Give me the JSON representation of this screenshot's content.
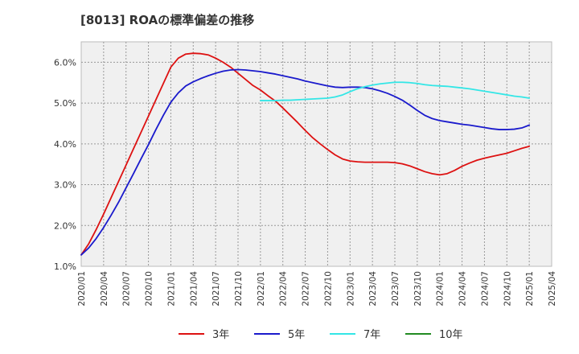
{
  "chart_data": {
    "type": "line",
    "title": "[8013]  ROAの標準偏差の推移",
    "xlabel": "",
    "ylabel": "",
    "ylim": [
      1.0,
      6.5
    ],
    "yticks": [
      "1.0%",
      "2.0%",
      "3.0%",
      "4.0%",
      "5.0%",
      "6.0%"
    ],
    "xticks": [
      "2020/01",
      "2020/04",
      "2020/07",
      "2020/10",
      "2021/01",
      "2021/04",
      "2021/07",
      "2021/10",
      "2022/01",
      "2022/04",
      "2022/07",
      "2022/10",
      "2023/01",
      "2023/04",
      "2023/07",
      "2023/10",
      "2024/01",
      "2024/04",
      "2024/07",
      "2024/10",
      "2025/01",
      "2025/04"
    ],
    "grid": true,
    "legend_position": "bottom",
    "series": [
      {
        "name": "3年",
        "color": "#dd1111",
        "points": [
          [
            "2020/01",
            1.28
          ],
          [
            "2020/02",
            1.55
          ],
          [
            "2020/03",
            1.9
          ],
          [
            "2020/04",
            2.28
          ],
          [
            "2020/05",
            2.68
          ],
          [
            "2020/06",
            3.08
          ],
          [
            "2020/07",
            3.48
          ],
          [
            "2020/08",
            3.88
          ],
          [
            "2020/09",
            4.28
          ],
          [
            "2020/10",
            4.68
          ],
          [
            "2020/11",
            5.08
          ],
          [
            "2020/12",
            5.48
          ],
          [
            "2021/01",
            5.88
          ],
          [
            "2021/02",
            6.1
          ],
          [
            "2021/03",
            6.2
          ],
          [
            "2021/04",
            6.22
          ],
          [
            "2021/05",
            6.21
          ],
          [
            "2021/06",
            6.18
          ],
          [
            "2021/07",
            6.1
          ],
          [
            "2021/08",
            6.0
          ],
          [
            "2021/09",
            5.88
          ],
          [
            "2021/10",
            5.73
          ],
          [
            "2021/11",
            5.58
          ],
          [
            "2021/12",
            5.43
          ],
          [
            "2022/01",
            5.32
          ],
          [
            "2022/02",
            5.18
          ],
          [
            "2022/03",
            5.05
          ],
          [
            "2022/04",
            4.88
          ],
          [
            "2022/05",
            4.7
          ],
          [
            "2022/06",
            4.52
          ],
          [
            "2022/07",
            4.33
          ],
          [
            "2022/08",
            4.15
          ],
          [
            "2022/09",
            4.0
          ],
          [
            "2022/10",
            3.86
          ],
          [
            "2022/11",
            3.73
          ],
          [
            "2022/12",
            3.63
          ],
          [
            "2023/01",
            3.58
          ],
          [
            "2023/02",
            3.56
          ],
          [
            "2023/03",
            3.55
          ],
          [
            "2023/04",
            3.55
          ],
          [
            "2023/05",
            3.55
          ],
          [
            "2023/06",
            3.55
          ],
          [
            "2023/07",
            3.54
          ],
          [
            "2023/08",
            3.51
          ],
          [
            "2023/09",
            3.46
          ],
          [
            "2023/10",
            3.39
          ],
          [
            "2023/11",
            3.32
          ],
          [
            "2023/12",
            3.27
          ],
          [
            "2024/01",
            3.24
          ],
          [
            "2024/02",
            3.27
          ],
          [
            "2024/03",
            3.35
          ],
          [
            "2024/04",
            3.45
          ],
          [
            "2024/05",
            3.53
          ],
          [
            "2024/06",
            3.6
          ],
          [
            "2024/07",
            3.65
          ],
          [
            "2024/08",
            3.69
          ],
          [
            "2024/09",
            3.73
          ],
          [
            "2024/10",
            3.77
          ],
          [
            "2024/11",
            3.83
          ],
          [
            "2024/12",
            3.89
          ],
          [
            "2025/01",
            3.94
          ]
        ]
      },
      {
        "name": "5年",
        "color": "#1a1acc",
        "points": [
          [
            "2020/01",
            1.28
          ],
          [
            "2020/02",
            1.45
          ],
          [
            "2020/03",
            1.68
          ],
          [
            "2020/04",
            1.95
          ],
          [
            "2020/05",
            2.25
          ],
          [
            "2020/06",
            2.57
          ],
          [
            "2020/07",
            2.92
          ],
          [
            "2020/08",
            3.27
          ],
          [
            "2020/09",
            3.63
          ],
          [
            "2020/10",
            3.98
          ],
          [
            "2020/11",
            4.35
          ],
          [
            "2020/12",
            4.7
          ],
          [
            "2021/01",
            5.02
          ],
          [
            "2021/02",
            5.25
          ],
          [
            "2021/03",
            5.42
          ],
          [
            "2021/04",
            5.52
          ],
          [
            "2021/05",
            5.6
          ],
          [
            "2021/06",
            5.67
          ],
          [
            "2021/07",
            5.73
          ],
          [
            "2021/08",
            5.78
          ],
          [
            "2021/09",
            5.81
          ],
          [
            "2021/10",
            5.82
          ],
          [
            "2021/11",
            5.81
          ],
          [
            "2021/12",
            5.79
          ],
          [
            "2022/01",
            5.77
          ],
          [
            "2022/02",
            5.74
          ],
          [
            "2022/03",
            5.71
          ],
          [
            "2022/04",
            5.67
          ],
          [
            "2022/05",
            5.63
          ],
          [
            "2022/06",
            5.59
          ],
          [
            "2022/07",
            5.54
          ],
          [
            "2022/08",
            5.5
          ],
          [
            "2022/09",
            5.46
          ],
          [
            "2022/10",
            5.42
          ],
          [
            "2022/11",
            5.39
          ],
          [
            "2022/12",
            5.38
          ],
          [
            "2023/01",
            5.39
          ],
          [
            "2023/02",
            5.39
          ],
          [
            "2023/03",
            5.38
          ],
          [
            "2023/04",
            5.35
          ],
          [
            "2023/05",
            5.3
          ],
          [
            "2023/06",
            5.24
          ],
          [
            "2023/07",
            5.16
          ],
          [
            "2023/08",
            5.07
          ],
          [
            "2023/09",
            4.95
          ],
          [
            "2023/10",
            4.82
          ],
          [
            "2023/11",
            4.7
          ],
          [
            "2023/12",
            4.62
          ],
          [
            "2024/01",
            4.57
          ],
          [
            "2024/02",
            4.54
          ],
          [
            "2024/03",
            4.51
          ],
          [
            "2024/04",
            4.48
          ],
          [
            "2024/05",
            4.46
          ],
          [
            "2024/06",
            4.43
          ],
          [
            "2024/07",
            4.4
          ],
          [
            "2024/08",
            4.37
          ],
          [
            "2024/09",
            4.35
          ],
          [
            "2024/10",
            4.35
          ],
          [
            "2024/11",
            4.36
          ],
          [
            "2024/12",
            4.39
          ],
          [
            "2025/01",
            4.46
          ]
        ]
      },
      {
        "name": "7年",
        "color": "#33e6e6",
        "points": [
          [
            "2022/01",
            5.06
          ],
          [
            "2022/02",
            5.06
          ],
          [
            "2022/03",
            5.06
          ],
          [
            "2022/04",
            5.07
          ],
          [
            "2022/05",
            5.07
          ],
          [
            "2022/06",
            5.08
          ],
          [
            "2022/07",
            5.09
          ],
          [
            "2022/08",
            5.1
          ],
          [
            "2022/09",
            5.11
          ],
          [
            "2022/10",
            5.12
          ],
          [
            "2022/11",
            5.15
          ],
          [
            "2022/12",
            5.2
          ],
          [
            "2023/01",
            5.28
          ],
          [
            "2023/02",
            5.35
          ],
          [
            "2023/03",
            5.4
          ],
          [
            "2023/04",
            5.44
          ],
          [
            "2023/05",
            5.47
          ],
          [
            "2023/06",
            5.49
          ],
          [
            "2023/07",
            5.51
          ],
          [
            "2023/08",
            5.51
          ],
          [
            "2023/09",
            5.5
          ],
          [
            "2023/10",
            5.48
          ],
          [
            "2023/11",
            5.45
          ],
          [
            "2023/12",
            5.43
          ],
          [
            "2024/01",
            5.42
          ],
          [
            "2024/02",
            5.41
          ],
          [
            "2024/03",
            5.39
          ],
          [
            "2024/04",
            5.37
          ],
          [
            "2024/05",
            5.35
          ],
          [
            "2024/06",
            5.32
          ],
          [
            "2024/07",
            5.29
          ],
          [
            "2024/08",
            5.26
          ],
          [
            "2024/09",
            5.23
          ],
          [
            "2024/10",
            5.2
          ],
          [
            "2024/11",
            5.17
          ],
          [
            "2024/12",
            5.15
          ],
          [
            "2025/01",
            5.12
          ]
        ]
      },
      {
        "name": "10年",
        "color": "#228b22",
        "points": []
      }
    ]
  }
}
